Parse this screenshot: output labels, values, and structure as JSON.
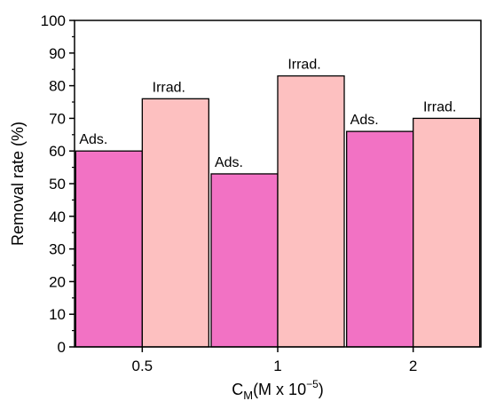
{
  "chart_data": {
    "type": "bar",
    "categories": [
      "0.5",
      "1",
      "2"
    ],
    "series": [
      {
        "name": "Ads.",
        "values": [
          60,
          53,
          66
        ],
        "color": "#f272c4"
      },
      {
        "name": "Irrad.",
        "values": [
          76,
          83,
          70
        ],
        "color": "#fdc0c0"
      }
    ],
    "xlabel": {
      "main": "C",
      "sub": "M",
      "rest": "(M x 10",
      "exp": "−5",
      "close": ")"
    },
    "ylabel": "Removal rate (%)",
    "ylim": [
      0,
      100
    ],
    "yticks": [
      "0",
      "10",
      "20",
      "30",
      "40",
      "50",
      "60",
      "70",
      "80",
      "90",
      "100"
    ],
    "grid": false,
    "legend": "none"
  }
}
